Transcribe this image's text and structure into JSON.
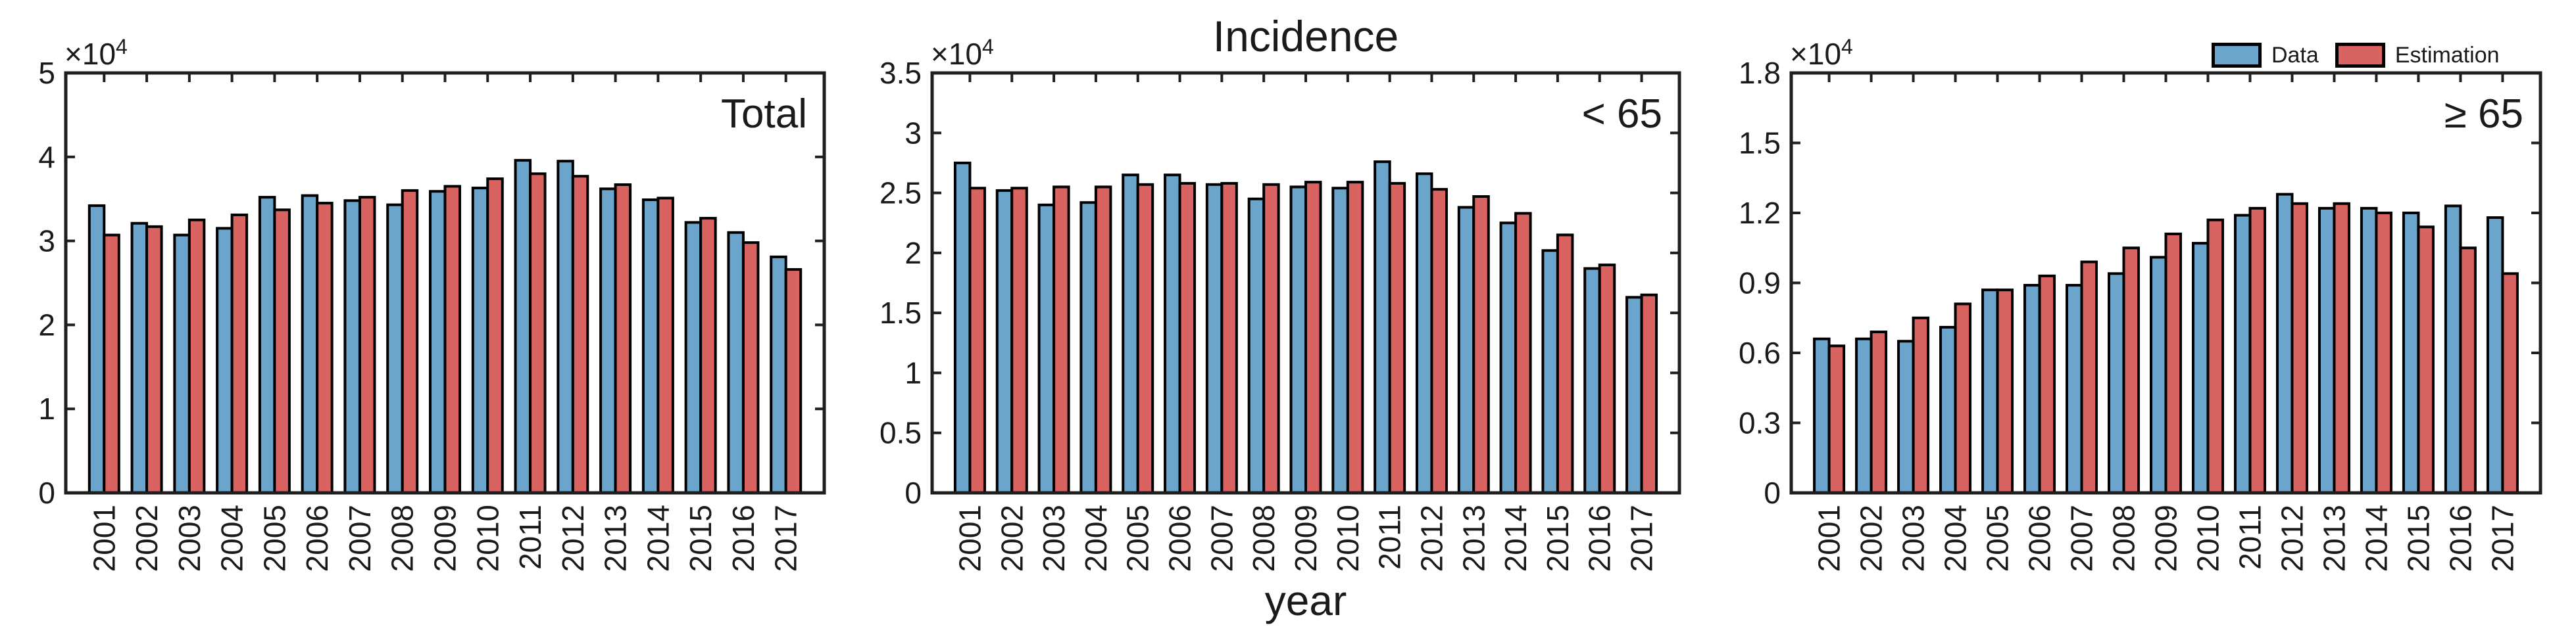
{
  "figure": {
    "title": "Incidence",
    "x_axis_label": "year",
    "background_color": "#ffffff",
    "text_color": "#1a1a1a",
    "axis_color": "#1f1f1f",
    "bar_edge_color": "#000000",
    "legend": {
      "items": [
        {
          "label": "Data",
          "color": "#6CA5CC"
        },
        {
          "label": "Estimation",
          "color": "#D96360"
        }
      ]
    }
  },
  "chart_data": [
    {
      "type": "bar",
      "panel_label": "Total",
      "y_exponent_base": "×10",
      "y_exponent_power": "4",
      "values_unit": "×10^4",
      "categories": [
        "2001",
        "2002",
        "2003",
        "2004",
        "2005",
        "2006",
        "2007",
        "2008",
        "2009",
        "2010",
        "2011",
        "2012",
        "2013",
        "2014",
        "2015",
        "2016",
        "2017"
      ],
      "series": [
        {
          "name": "Data",
          "color": "#6CA5CC",
          "values": [
            3.42,
            3.21,
            3.07,
            3.15,
            3.52,
            3.54,
            3.48,
            3.43,
            3.59,
            3.63,
            3.96,
            3.95,
            3.62,
            3.49,
            3.22,
            3.1,
            2.81
          ]
        },
        {
          "name": "Estimation",
          "color": "#D96360",
          "values": [
            3.07,
            3.17,
            3.25,
            3.31,
            3.37,
            3.45,
            3.52,
            3.6,
            3.65,
            3.74,
            3.8,
            3.77,
            3.67,
            3.51,
            3.27,
            2.98,
            2.66
          ]
        }
      ],
      "ylim": [
        0,
        5
      ],
      "yticks": [
        0,
        1,
        2,
        3,
        4,
        5
      ],
      "ytick_labels": [
        "0",
        "1",
        "2",
        "3",
        "4",
        "5"
      ],
      "grid": false,
      "legend_position": "none"
    },
    {
      "type": "bar",
      "panel_label": "< 65",
      "y_exponent_base": "×10",
      "y_exponent_power": "4",
      "values_unit": "×10^4",
      "categories": [
        "2001",
        "2002",
        "2003",
        "2004",
        "2005",
        "2006",
        "2007",
        "2008",
        "2009",
        "2010",
        "2011",
        "2012",
        "2013",
        "2014",
        "2015",
        "2016",
        "2017"
      ],
      "series": [
        {
          "name": "Data",
          "color": "#6CA5CC",
          "values": [
            2.75,
            2.52,
            2.4,
            2.42,
            2.65,
            2.65,
            2.57,
            2.45,
            2.55,
            2.54,
            2.76,
            2.66,
            2.38,
            2.25,
            2.02,
            1.87,
            1.63
          ]
        },
        {
          "name": "Estimation",
          "color": "#D96360",
          "values": [
            2.54,
            2.54,
            2.55,
            2.55,
            2.57,
            2.58,
            2.58,
            2.57,
            2.59,
            2.59,
            2.58,
            2.53,
            2.47,
            2.33,
            2.15,
            1.9,
            1.65
          ]
        }
      ],
      "ylim": [
        0,
        3.5
      ],
      "yticks": [
        0,
        0.5,
        1,
        1.5,
        2,
        2.5,
        3,
        3.5
      ],
      "ytick_labels": [
        "0",
        "0.5",
        "1",
        "1.5",
        "2",
        "2.5",
        "3",
        "3.5"
      ],
      "grid": false,
      "legend_position": "none"
    },
    {
      "type": "bar",
      "panel_label": "≥ 65",
      "y_exponent_base": "×10",
      "y_exponent_power": "4",
      "values_unit": "×10^4",
      "categories": [
        "2001",
        "2002",
        "2003",
        "2004",
        "2005",
        "2006",
        "2007",
        "2008",
        "2009",
        "2010",
        "2011",
        "2012",
        "2013",
        "2014",
        "2015",
        "2016",
        "2017"
      ],
      "series": [
        {
          "name": "Data",
          "color": "#6CA5CC",
          "values": [
            0.66,
            0.66,
            0.65,
            0.71,
            0.87,
            0.89,
            0.89,
            0.94,
            1.01,
            1.07,
            1.19,
            1.28,
            1.22,
            1.22,
            1.2,
            1.23,
            1.18
          ]
        },
        {
          "name": "Estimation",
          "color": "#D96360",
          "values": [
            0.63,
            0.69,
            0.75,
            0.81,
            0.87,
            0.93,
            0.99,
            1.05,
            1.11,
            1.17,
            1.22,
            1.24,
            1.24,
            1.2,
            1.14,
            1.05,
            0.94
          ]
        }
      ],
      "ylim": [
        0,
        1.8
      ],
      "yticks": [
        0,
        0.3,
        0.6,
        0.9,
        1.2,
        1.5,
        1.8
      ],
      "ytick_labels": [
        "0",
        "0.3",
        "0.6",
        "0.9",
        "1.2",
        "1.5",
        "1.8"
      ],
      "grid": false,
      "legend_position": "top-right"
    }
  ]
}
